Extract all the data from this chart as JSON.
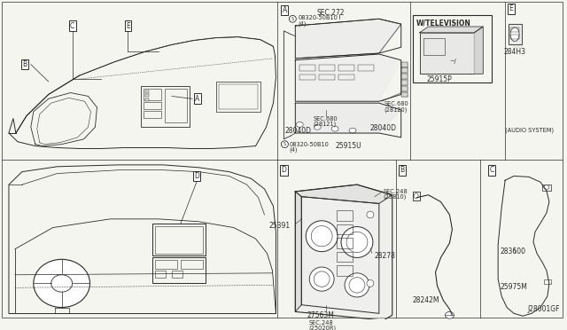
{
  "bg_color": "#f5f5f0",
  "line_color": "#2a2a2a",
  "diagram_id": "J28001GF",
  "figsize": [
    6.4,
    3.72
  ],
  "dpi": 100,
  "labels": {
    "A_top": "A",
    "B_top": "B",
    "C_top": "C",
    "D_top": "D",
    "E_top": "E",
    "sec272": "SEC.272",
    "screw_top": "Ⓢ 08320-50B10\n   (4)",
    "screw_bot": "Ⓢ 08320-50B10\n   (4)",
    "sec680_1": "SEC.680\n(28121)",
    "sec680_2": "SEC.680\n(28120)",
    "p28040D_1": "28040D",
    "p28040D_2": "28040D",
    "p25915U": "25915U",
    "w_tv": "W/TELEVISION",
    "p25915P": "25915P",
    "E_label": "E",
    "p284H3": "284H3",
    "audio_sys": "(AUDIO SYSTEM)",
    "D_bot": "D",
    "sec248_1": "SEC.248\n(25810)",
    "p25391": "25391",
    "p28278": "28278",
    "p27563M": "27563M",
    "sec248_2": "SEC.248\n(25020R)",
    "B_bot": "B",
    "p28242M": "28242M",
    "C_bot": "C",
    "p283600": "283600",
    "p25975M": "25975M",
    "diag_id": "J28001GF"
  }
}
